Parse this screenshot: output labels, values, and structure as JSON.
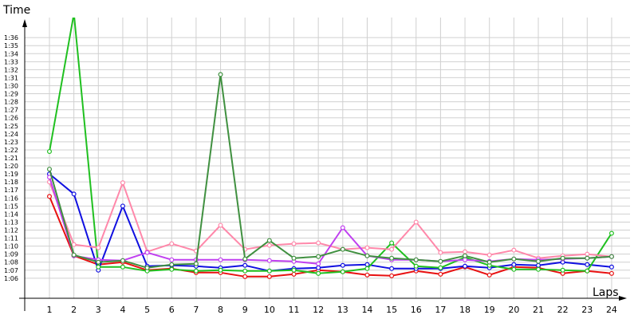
{
  "chart_data": {
    "type": "line",
    "ylabel": "Time",
    "xlabel": "Laps",
    "grid": true,
    "legend": "none",
    "x": [
      1,
      2,
      3,
      4,
      5,
      6,
      7,
      8,
      9,
      10,
      11,
      12,
      13,
      14,
      15,
      16,
      17,
      18,
      19,
      20,
      21,
      22,
      23,
      24
    ],
    "y_tick_labels": [
      "1:06",
      "1:07",
      "1:08",
      "1:09",
      "1:10",
      "1:11",
      "1:12",
      "1:13",
      "1:14",
      "1:15",
      "1:16",
      "1:17",
      "1:18",
      "1:19",
      "1:20",
      "1:21",
      "1:22",
      "1:23",
      "1:24",
      "1:25",
      "1:26",
      "1:27",
      "1:28",
      "1:29",
      "1:30",
      "1:31",
      "1:32",
      "1:33",
      "1:34",
      "1:35",
      "1:36"
    ],
    "y_tick_values": [
      66,
      67,
      68,
      69,
      70,
      71,
      72,
      73,
      74,
      75,
      76,
      77,
      78,
      79,
      80,
      81,
      82,
      83,
      84,
      85,
      86,
      87,
      88,
      89,
      90,
      91,
      92,
      93,
      94,
      95,
      96
    ],
    "ylim": [
      63.5,
      98.5
    ],
    "y_unit": "seconds",
    "series": [
      {
        "color": "#e81010",
        "values": [
          76.2,
          68.8,
          67.7,
          68.0,
          67.0,
          67.2,
          66.7,
          66.7,
          66.2,
          66.2,
          66.5,
          67.0,
          66.8,
          66.4,
          66.3,
          66.9,
          66.5,
          67.4,
          66.4,
          67.4,
          67.3,
          66.6,
          66.9,
          66.6
        ]
      },
      {
        "color": "#1010e0",
        "values": [
          79.0,
          76.5,
          67.0,
          75.0,
          67.5,
          67.6,
          67.5,
          67.3,
          67.6,
          66.9,
          67.2,
          67.3,
          67.6,
          67.7,
          67.2,
          67.2,
          67.2,
          67.5,
          67.3,
          67.7,
          67.6,
          68.0,
          67.7,
          67.4
        ]
      },
      {
        "color": "#20c020",
        "values": [
          81.8,
          99.0,
          67.4,
          67.4,
          66.9,
          67.1,
          66.9,
          67.0,
          66.9,
          66.9,
          67.0,
          66.6,
          66.8,
          67.2,
          70.4,
          67.5,
          67.3,
          68.6,
          67.6,
          67.1,
          67.1,
          67.0,
          66.9,
          71.6
        ]
      },
      {
        "color": "#ff88aa",
        "values": [
          78.0,
          70.2,
          69.8,
          77.9,
          69.3,
          70.3,
          69.4,
          72.6,
          69.6,
          70.1,
          70.3,
          70.4,
          69.6,
          69.8,
          69.6,
          73.0,
          69.2,
          69.3,
          68.9,
          69.5,
          68.5,
          68.8,
          69.0,
          68.7
        ]
      },
      {
        "color": "#c040f0",
        "values": [
          78.6,
          68.8,
          68.3,
          68.2,
          69.2,
          68.3,
          68.3,
          68.3,
          68.3,
          68.2,
          68.1,
          67.8,
          72.3,
          68.8,
          68.3,
          68.3,
          68.1,
          68.3,
          68.1,
          68.4,
          68.3,
          68.4,
          68.5,
          68.7
        ]
      },
      {
        "color": "#409040",
        "values": [
          79.6,
          68.9,
          68.0,
          68.2,
          67.3,
          67.7,
          67.8,
          91.4,
          68.4,
          70.7,
          68.5,
          68.7,
          69.6,
          68.8,
          68.5,
          68.3,
          68.1,
          68.8,
          68.0,
          68.4,
          68.1,
          68.5,
          68.5,
          68.7
        ]
      }
    ]
  }
}
